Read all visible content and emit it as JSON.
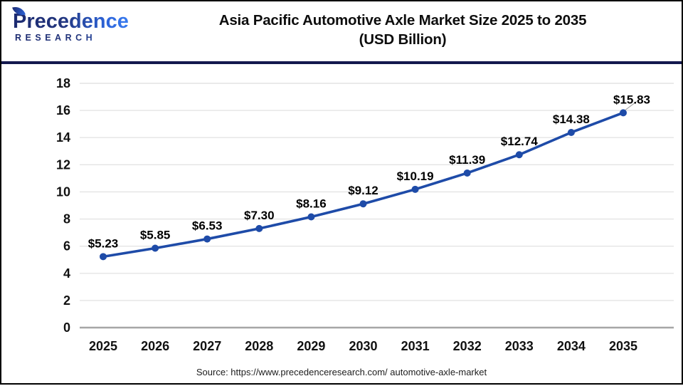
{
  "header": {
    "logo": {
      "line1": "Precedence",
      "line2": "RESEARCH"
    },
    "title_line1": "Asia Pacific Automotive Axle Market Size 2025 to 2035",
    "title_line2": "(USD Billion)"
  },
  "chart_data": {
    "type": "line",
    "title": "Asia Pacific Automotive Axle Market Size 2025 to 2035 (USD Billion)",
    "categories": [
      "2025",
      "2026",
      "2027",
      "2028",
      "2029",
      "2030",
      "2031",
      "2032",
      "2033",
      "2034",
      "2035"
    ],
    "values": [
      5.23,
      5.85,
      6.53,
      7.3,
      8.16,
      9.12,
      10.19,
      11.39,
      12.74,
      14.38,
      15.83
    ],
    "value_prefix": "$",
    "xlabel": "",
    "ylabel": "",
    "ylim": [
      0,
      18
    ],
    "ytick_step": 2,
    "grid": true,
    "legend": "none",
    "line_color": "#1E4BA8",
    "marker_color": "#1E4BA8",
    "grid_color": "#E4E4E4",
    "axis_color": "#A6A6A6",
    "label_color": "#000000"
  },
  "footer": {
    "source": "Source: https://www.precedenceresearch.com/ automotive-axle-market"
  }
}
